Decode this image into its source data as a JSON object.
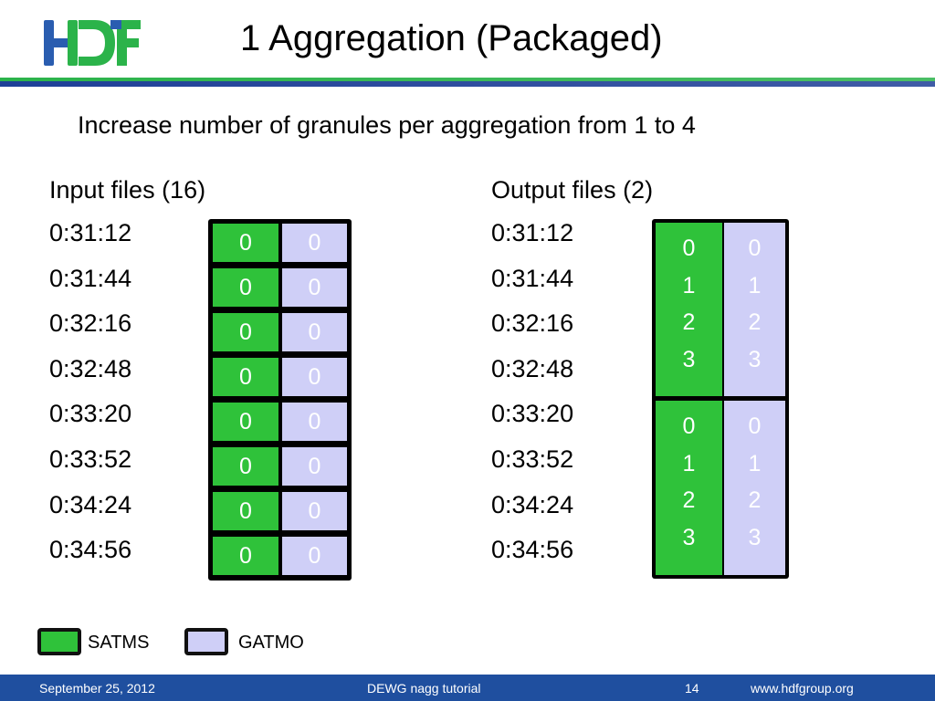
{
  "slide": {
    "title": "1 Aggregation (Packaged)",
    "subtitle": "Increase number of granules per aggregation from 1 to 4"
  },
  "input": {
    "heading": "Input files (16)",
    "times": [
      "0:31:12",
      "0:31:44",
      "0:32:16",
      "0:32:48",
      "0:33:20",
      "0:33:52",
      "0:34:24",
      "0:34:56"
    ],
    "satms_cells": [
      "0",
      "0",
      "0",
      "0",
      "0",
      "0",
      "0",
      "0"
    ],
    "gatmo_cells": [
      "0",
      "0",
      "0",
      "0",
      "0",
      "0",
      "0",
      "0"
    ]
  },
  "output": {
    "heading": "Output files (2)",
    "times": [
      "0:31:12",
      "0:31:44",
      "0:32:16",
      "0:32:48",
      "0:33:20",
      "0:33:52",
      "0:34:24",
      "0:34:56"
    ],
    "aggregations": [
      {
        "satms": [
          "0",
          "1",
          "2",
          "3"
        ],
        "gatmo": [
          "0",
          "1",
          "2",
          "3"
        ]
      },
      {
        "satms": [
          "0",
          "1",
          "2",
          "3"
        ],
        "gatmo": [
          "0",
          "1",
          "2",
          "3"
        ]
      }
    ]
  },
  "legend": {
    "satms_label": "SATMS",
    "gatmo_label": "GATMO",
    "satms_color": "#2fc23a",
    "gatmo_color": "#cfcff7"
  },
  "footer": {
    "date": "September 25, 2012",
    "event": "DEWG nagg tutorial",
    "page_number": "14",
    "website": "www.hdfgroup.org"
  },
  "colors": {
    "footer_bar": "#1f4f9f",
    "divider_green": "#2bb34a",
    "divider_blue": "#1e3f97",
    "logo_blue": "#2a5db0",
    "logo_green": "#2bb34a"
  }
}
